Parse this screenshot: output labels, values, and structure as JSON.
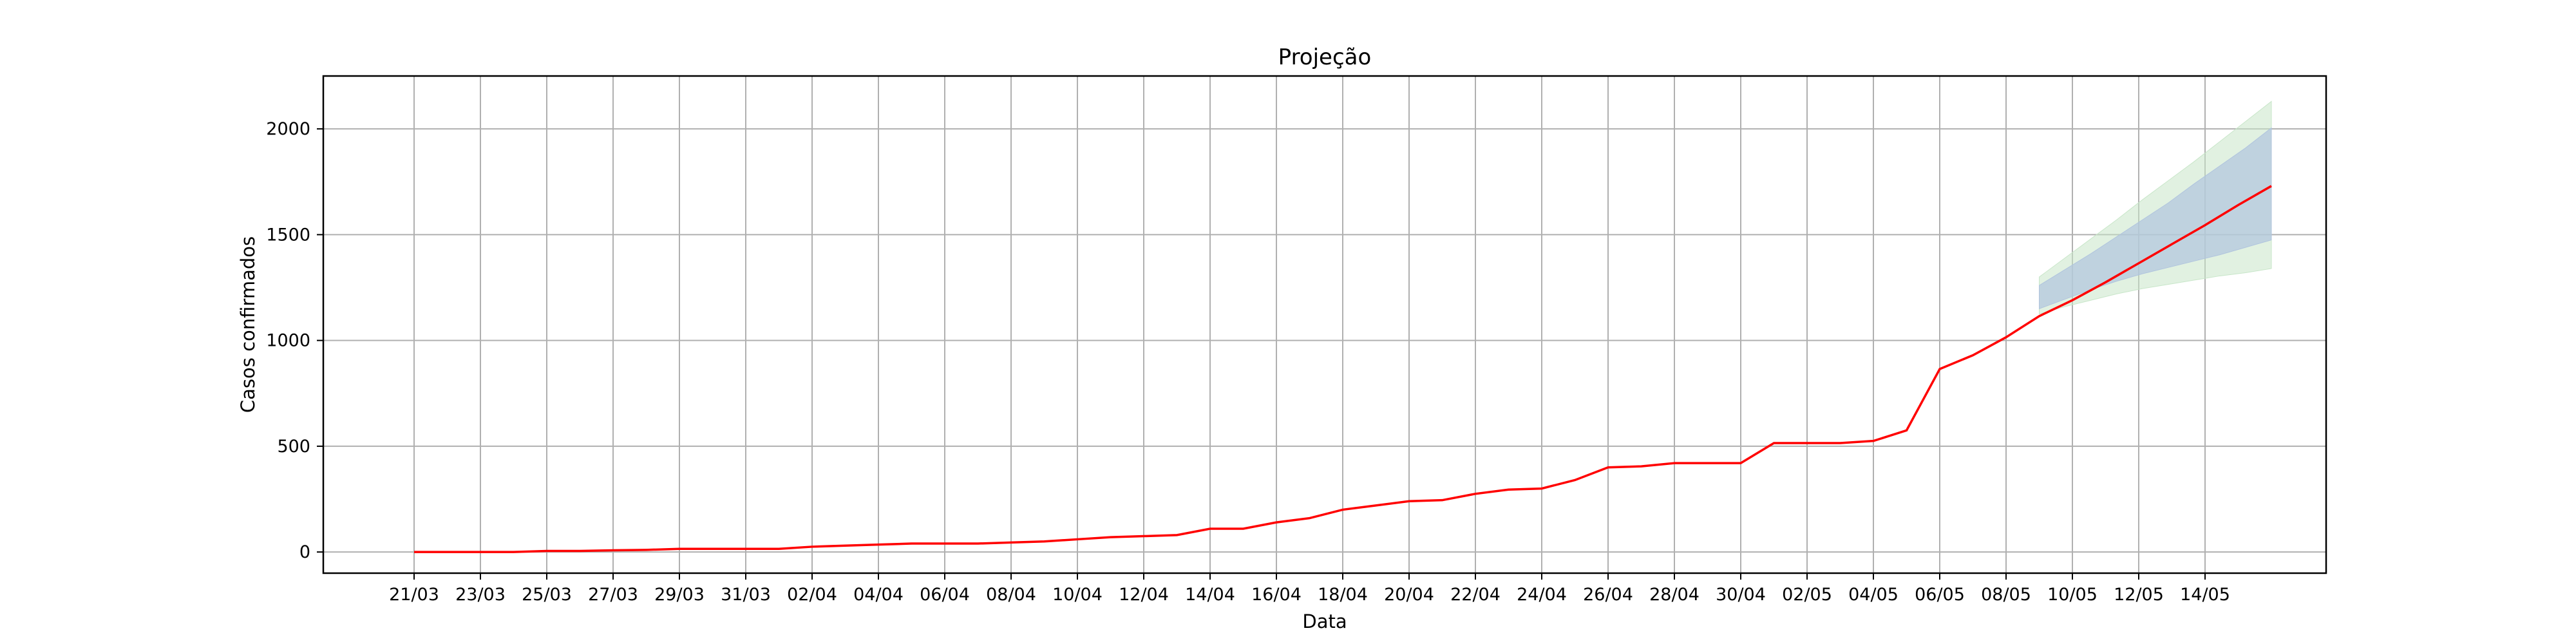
{
  "chart_data": {
    "type": "line",
    "title": "Projeção",
    "xlabel": "Data",
    "ylabel": "Casos confirmados",
    "grid": true,
    "ylim": [
      -100,
      2250
    ],
    "yticks": [
      0,
      500,
      1000,
      1500,
      2000
    ],
    "x_tick_labels": [
      "21/03",
      "23/03",
      "25/03",
      "27/03",
      "29/03",
      "31/03",
      "02/04",
      "04/04",
      "06/04",
      "08/04",
      "10/04",
      "12/04",
      "14/04",
      "16/04",
      "18/04",
      "20/04",
      "22/04",
      "24/04",
      "26/04",
      "28/04",
      "30/04",
      "02/05",
      "04/05",
      "06/05",
      "08/05",
      "10/05",
      "12/05",
      "14/05"
    ],
    "colors": {
      "observed": "#ff0000",
      "inner_band": "#b0c4de",
      "outer_band": "#c8e6c9"
    },
    "series": [
      {
        "values": [
          0,
          0,
          0,
          0,
          5,
          5,
          8,
          10,
          15,
          15,
          15,
          15,
          25,
          30,
          35,
          40,
          40,
          40,
          45,
          50,
          60,
          70,
          75,
          80,
          110,
          110,
          140,
          160,
          200,
          220,
          240,
          245,
          275,
          295,
          300,
          340,
          400,
          405,
          420,
          420,
          420,
          515,
          515,
          515,
          525,
          575,
          865,
          930,
          1015,
          1115,
          1190,
          1275,
          1365,
          1455,
          1545,
          1640,
          1730
        ]
      }
    ],
    "projection": {
      "inner_upper": [
        1260,
        1335,
        1410,
        1490,
        1570,
        1650,
        1740,
        1825,
        1910,
        2005
      ],
      "inner_lower": [
        1150,
        1195,
        1240,
        1280,
        1315,
        1345,
        1375,
        1405,
        1440,
        1475
      ],
      "outer_upper": [
        1300,
        1390,
        1480,
        1570,
        1665,
        1755,
        1845,
        1940,
        2035,
        2130
      ],
      "outer_lower": [
        1125,
        1160,
        1190,
        1220,
        1245,
        1265,
        1285,
        1305,
        1320,
        1340
      ]
    }
  }
}
